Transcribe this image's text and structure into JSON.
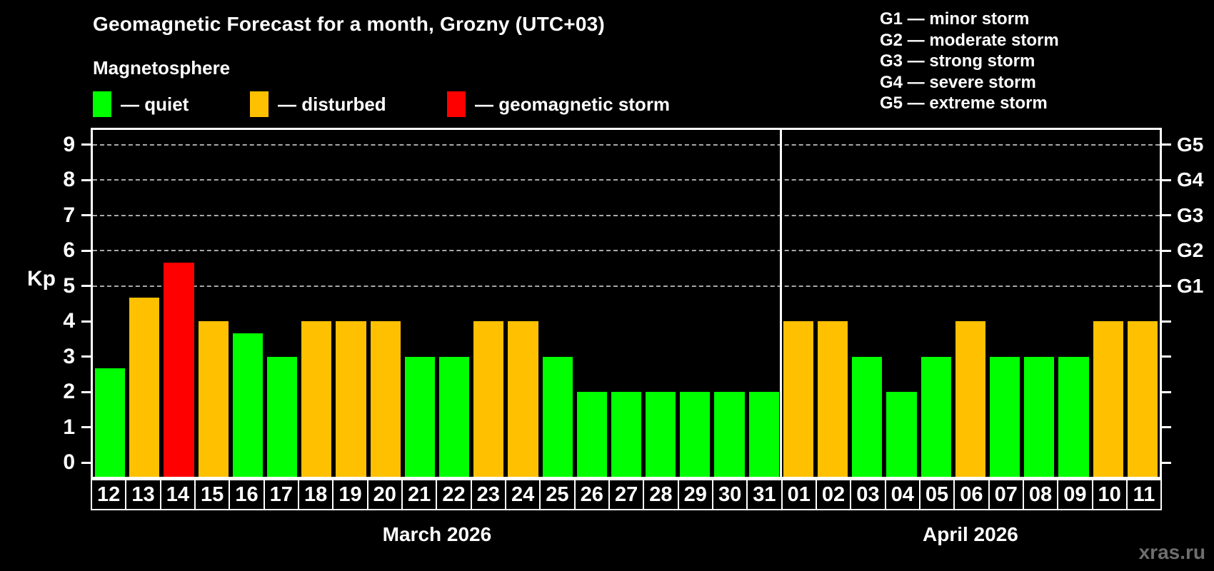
{
  "title": "Geomagnetic Forecast for a month, Grozny (UTC+03)",
  "legend": {
    "heading": "Magnetosphere",
    "items": [
      {
        "key": "quiet",
        "label": "— quiet"
      },
      {
        "key": "disturbed",
        "label": "— disturbed"
      },
      {
        "key": "storm",
        "label": "— geomagnetic storm"
      }
    ]
  },
  "storm_scale": {
    "items": [
      "G1 — minor storm",
      "G2 — moderate storm",
      "G3 — strong storm",
      "G4 — severe storm",
      "G5 — extreme storm"
    ]
  },
  "y_axis_title": "Kp",
  "watermark": "xras.ru",
  "chart_data": {
    "type": "bar",
    "title": "Geomagnetic Forecast for a month, Grozny (UTC+03)",
    "ylabel": "Kp",
    "ylim": [
      0,
      9
    ],
    "y_ticks": [
      0,
      1,
      2,
      3,
      4,
      5,
      6,
      7,
      8,
      9
    ],
    "grid_values": [
      5,
      6,
      7,
      8,
      9
    ],
    "grid_style": "dashed",
    "right_axis_labels": [
      {
        "kp": 5,
        "label": "G1"
      },
      {
        "kp": 6,
        "label": "G2"
      },
      {
        "kp": 7,
        "label": "G3"
      },
      {
        "kp": 8,
        "label": "G4"
      },
      {
        "kp": 9,
        "label": "G5"
      }
    ],
    "status_colors": {
      "quiet": "#00ff00",
      "disturbed": "#ffc000",
      "storm": "#ff0000"
    },
    "background_color": "#000000",
    "months": [
      {
        "label": "March 2026",
        "days": [
          {
            "date": "12",
            "kp": 2.67,
            "status": "quiet"
          },
          {
            "date": "13",
            "kp": 4.67,
            "status": "disturbed"
          },
          {
            "date": "14",
            "kp": 5.67,
            "status": "storm"
          },
          {
            "date": "15",
            "kp": 4,
            "status": "disturbed"
          },
          {
            "date": "16",
            "kp": 3.67,
            "status": "quiet"
          },
          {
            "date": "17",
            "kp": 3,
            "status": "quiet"
          },
          {
            "date": "18",
            "kp": 4,
            "status": "disturbed"
          },
          {
            "date": "19",
            "kp": 4,
            "status": "disturbed"
          },
          {
            "date": "20",
            "kp": 4,
            "status": "disturbed"
          },
          {
            "date": "21",
            "kp": 3,
            "status": "quiet"
          },
          {
            "date": "22",
            "kp": 3,
            "status": "quiet"
          },
          {
            "date": "23",
            "kp": 4,
            "status": "disturbed"
          },
          {
            "date": "24",
            "kp": 4,
            "status": "disturbed"
          },
          {
            "date": "25",
            "kp": 3,
            "status": "quiet"
          },
          {
            "date": "26",
            "kp": 2,
            "status": "quiet"
          },
          {
            "date": "27",
            "kp": 2,
            "status": "quiet"
          },
          {
            "date": "28",
            "kp": 2,
            "status": "quiet"
          },
          {
            "date": "29",
            "kp": 2,
            "status": "quiet"
          },
          {
            "date": "30",
            "kp": 2,
            "status": "quiet"
          },
          {
            "date": "31",
            "kp": 2,
            "status": "quiet"
          }
        ]
      },
      {
        "label": "April 2026",
        "days": [
          {
            "date": "01",
            "kp": 4,
            "status": "disturbed"
          },
          {
            "date": "02",
            "kp": 4,
            "status": "disturbed"
          },
          {
            "date": "03",
            "kp": 3,
            "status": "quiet"
          },
          {
            "date": "04",
            "kp": 2,
            "status": "quiet"
          },
          {
            "date": "05",
            "kp": 3,
            "status": "quiet"
          },
          {
            "date": "06",
            "kp": 4,
            "status": "disturbed"
          },
          {
            "date": "07",
            "kp": 3,
            "status": "quiet"
          },
          {
            "date": "08",
            "kp": 3,
            "status": "quiet"
          },
          {
            "date": "09",
            "kp": 3,
            "status": "quiet"
          },
          {
            "date": "10",
            "kp": 4,
            "status": "disturbed"
          },
          {
            "date": "11",
            "kp": 4,
            "status": "disturbed"
          }
        ]
      }
    ]
  }
}
